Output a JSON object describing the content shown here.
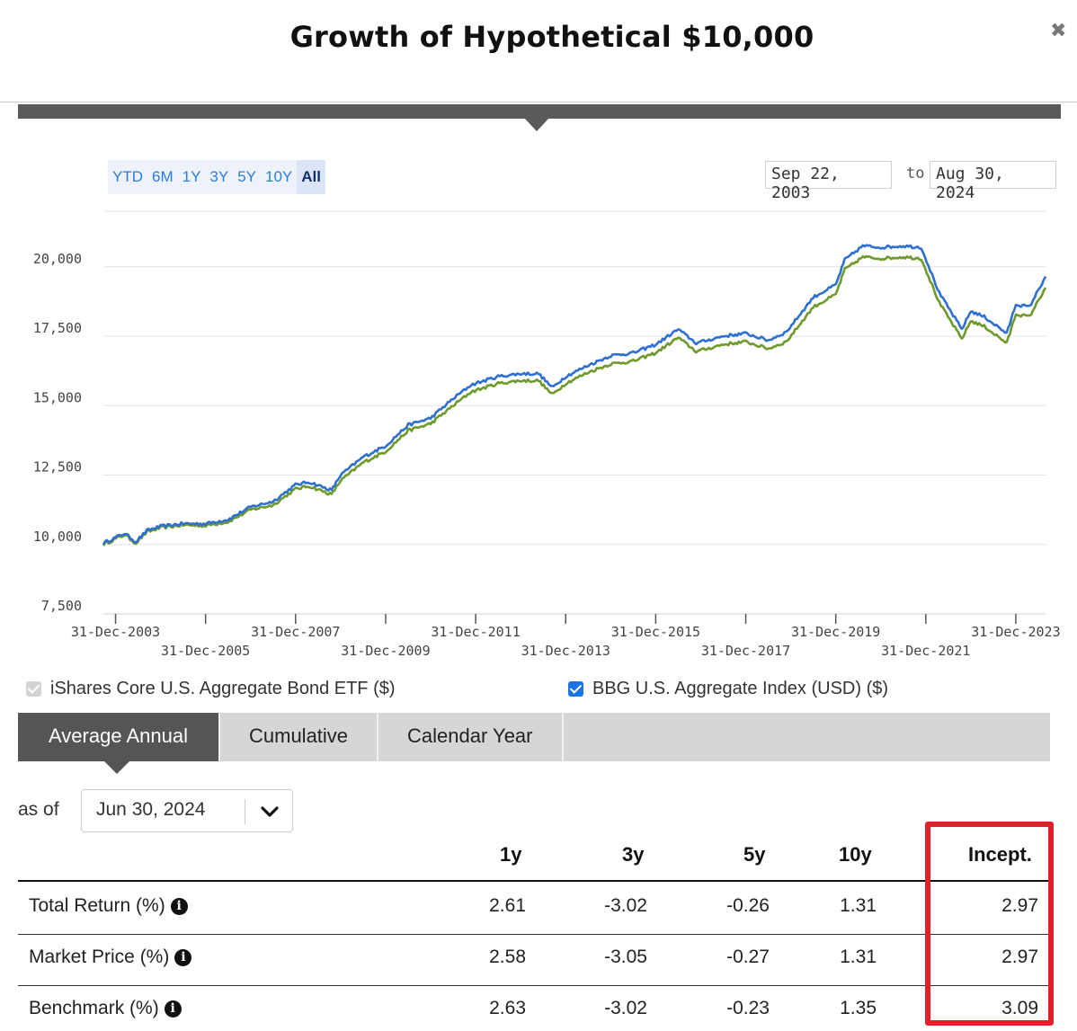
{
  "header": {
    "title": "Growth of Hypothetical $10,000",
    "close_icon": "close-icon"
  },
  "range": {
    "buttons": [
      "YTD",
      "6M",
      "1Y",
      "3Y",
      "5Y",
      "10Y",
      "All"
    ],
    "active": "All",
    "from": "Sep 22, 2003",
    "to_label": "to",
    "to": "Aug 30, 2024"
  },
  "chart_data": {
    "type": "line",
    "title": "",
    "ylim": [
      7500,
      22000
    ],
    "y_ticks": [
      7500,
      10000,
      12500,
      15000,
      17500,
      20000
    ],
    "y_tick_labels": [
      "7,500",
      "10,000",
      "12,500",
      "15,000",
      "17,500",
      "20,000"
    ],
    "x_range": [
      2003.73,
      2024.66
    ],
    "x_ticks": [
      2004,
      2006,
      2008,
      2010,
      2012,
      2014,
      2016,
      2018,
      2020,
      2022,
      2024
    ],
    "x_tick_labels": [
      "31-Dec-2003",
      "31-Dec-2005",
      "31-Dec-2007",
      "31-Dec-2009",
      "31-Dec-2011",
      "31-Dec-2013",
      "31-Dec-2015",
      "31-Dec-2017",
      "31-Dec-2019",
      "31-Dec-2021",
      "31-Dec-2023"
    ],
    "grid": true,
    "series": [
      {
        "name": "BBG U.S. Aggregate Index (USD) ($)",
        "color": "#2f6fcf",
        "x": [
          2003.73,
          2004.2,
          2004.45,
          2004.7,
          2005.0,
          2005.5,
          2006.0,
          2006.5,
          2007.0,
          2007.5,
          2008.0,
          2008.3,
          2008.8,
          2009.0,
          2009.5,
          2010.0,
          2010.5,
          2011.0,
          2011.5,
          2011.9,
          2012.5,
          2013.0,
          2013.4,
          2013.7,
          2014.0,
          2014.5,
          2015.0,
          2015.5,
          2016.0,
          2016.5,
          2016.9,
          2017.5,
          2018.0,
          2018.5,
          2018.9,
          2019.5,
          2020.0,
          2020.2,
          2020.6,
          2021.0,
          2021.5,
          2021.9,
          2022.3,
          2022.8,
          2023.0,
          2023.3,
          2023.8,
          2024.0,
          2024.3,
          2024.66
        ],
        "y": [
          10050,
          10400,
          10100,
          10500,
          10650,
          10750,
          10750,
          10900,
          11350,
          11550,
          12150,
          12250,
          11950,
          12500,
          13150,
          13550,
          14300,
          14550,
          15250,
          15750,
          16050,
          16150,
          16150,
          15650,
          16050,
          16450,
          16800,
          16900,
          17200,
          17750,
          17250,
          17500,
          17600,
          17350,
          17650,
          18900,
          19350,
          20250,
          20750,
          20700,
          20750,
          20700,
          19050,
          17750,
          18400,
          18200,
          17600,
          18650,
          18550,
          19650
        ]
      },
      {
        "name": "iShares Core U.S. Aggregate Bond ETF ($)",
        "color": "#6e9a2c",
        "x": [
          2003.73,
          2004.2,
          2004.45,
          2004.7,
          2005.0,
          2005.5,
          2006.0,
          2006.5,
          2007.0,
          2007.5,
          2008.0,
          2008.3,
          2008.8,
          2009.0,
          2009.5,
          2010.0,
          2010.5,
          2011.0,
          2011.5,
          2011.9,
          2012.5,
          2013.0,
          2013.4,
          2013.7,
          2014.0,
          2014.5,
          2015.0,
          2015.5,
          2016.0,
          2016.5,
          2016.9,
          2017.5,
          2018.0,
          2018.5,
          2018.9,
          2019.5,
          2020.0,
          2020.2,
          2020.6,
          2021.0,
          2021.5,
          2021.9,
          2022.3,
          2022.8,
          2023.0,
          2023.3,
          2023.8,
          2024.0,
          2024.3,
          2024.66
        ],
        "y": [
          10000,
          10350,
          10050,
          10450,
          10600,
          10700,
          10680,
          10820,
          11250,
          11420,
          12000,
          12100,
          11800,
          12300,
          12950,
          13350,
          14100,
          14350,
          15000,
          15500,
          15800,
          15900,
          15900,
          15400,
          15800,
          16200,
          16500,
          16600,
          16900,
          17450,
          16950,
          17200,
          17300,
          17050,
          17300,
          18550,
          19000,
          19900,
          20350,
          20300,
          20350,
          20300,
          18700,
          17400,
          18050,
          17850,
          17250,
          18300,
          18200,
          19250
        ]
      }
    ]
  },
  "legend": {
    "fund_label": "iShares Core U.S. Aggregate Bond ETF ($)",
    "benchmark_label": "BBG U.S. Aggregate Index (USD) ($)"
  },
  "tabs": [
    "Average Annual",
    "Cumulative",
    "Calendar Year"
  ],
  "asof": {
    "label": "as of",
    "value": "Jun 30, 2024"
  },
  "table": {
    "columns": [
      "1y",
      "3y",
      "5y",
      "10y",
      "Incept."
    ],
    "rows": [
      {
        "label": "Total Return (%)",
        "values": [
          "2.61",
          "-3.02",
          "-0.26",
          "1.31",
          "2.97"
        ]
      },
      {
        "label": "Market Price (%)",
        "values": [
          "2.58",
          "-3.05",
          "-0.27",
          "1.31",
          "2.97"
        ]
      },
      {
        "label": "Benchmark (%)",
        "values": [
          "2.63",
          "-3.02",
          "-0.23",
          "1.35",
          "3.09"
        ]
      }
    ],
    "highlight_color": "#e0202a"
  }
}
